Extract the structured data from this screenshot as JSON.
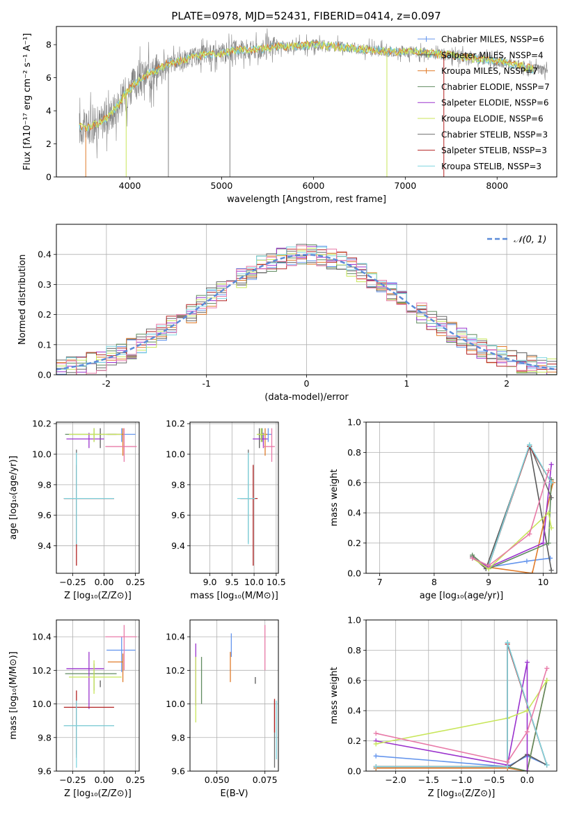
{
  "figure": {
    "title": "PLATE=0978, MJD=52431, FIBERID=0414, z=0.097"
  },
  "colors": {
    "chabrier_miles": "#6495ed",
    "salpeter_miles": "#5a5a5a",
    "kroupa_miles": "#e07b2a",
    "chabrier_elodie": "#5f8a5f",
    "salpeter_elodie": "#9a32cd",
    "kroupa_elodie": "#c8e65a",
    "chabrier_stelib": "#6a6a6a",
    "salpeter_stelib": "#b22222",
    "kroupa_stelib": "#7fd6e0",
    "elodie_pink": "#e87aa8",
    "data_grey": "#808080",
    "normal_curve": "#5b8bd8"
  },
  "chart_data": [
    {
      "id": "spectrum",
      "type": "line",
      "xlabel": "wavelength [Angstrom, rest frame]",
      "ylabel": "Flux [fλ10⁻¹⁷ erg cm⁻² s⁻¹ A⁻¹]",
      "xlim": [
        3200,
        8650
      ],
      "ylim": [
        0,
        9.1
      ],
      "xticks": [
        4000,
        5000,
        6000,
        7000,
        8000
      ],
      "yticks": [
        0,
        2,
        4,
        6,
        8
      ],
      "grid": false,
      "legend_position": "top-right",
      "legend": [
        "Chabrier MILES, NSSP=6",
        "Salpeter MILES, NSSP=4",
        "Kroupa MILES, NSSP=7",
        "Chabrier ELODIE, NSSP=7",
        "Salpeter ELODIE, NSSP=6",
        "Kroupa ELODIE, NSSP=6",
        "Chabrier STELIB, NSSP=3",
        "Salpeter STELIB, NSSP=3",
        "Kroupa STELIB, NSSP=3"
      ],
      "continuum": {
        "x": [
          3450,
          3550,
          3650,
          3750,
          3850,
          3950,
          4050,
          4200,
          4400,
          4600,
          4800,
          5000,
          5200,
          5400,
          5600,
          5800,
          6000,
          6200,
          6400,
          6600,
          6800,
          7000,
          7200,
          7400,
          7600,
          7800,
          8000,
          8200,
          8400
        ],
        "y": [
          3.0,
          3.0,
          3.2,
          3.6,
          4.2,
          5.0,
          5.6,
          6.2,
          6.8,
          7.1,
          7.4,
          7.5,
          7.7,
          7.7,
          7.9,
          7.9,
          8.0,
          7.9,
          7.8,
          7.7,
          7.6,
          7.6,
          7.5,
          7.4,
          7.3,
          7.1,
          7.0,
          6.8,
          6.5
        ]
      },
      "data_range": [
        3450,
        8550
      ]
    },
    {
      "id": "residuals",
      "type": "histogram",
      "xlabel": "(data-model)/error",
      "ylabel": "Normed distribution",
      "xlim": [
        -2.5,
        2.5
      ],
      "ylim": [
        0,
        0.5
      ],
      "xticks": [
        -2,
        -1,
        0,
        1,
        2
      ],
      "yticks": [
        0.0,
        0.1,
        0.2,
        0.3,
        0.4
      ],
      "grid": true,
      "legend_position": "top-right",
      "legend": [
        "𝒩(0, 1)"
      ],
      "bin_edges_start": -2.5,
      "bin_width": 0.1
    },
    {
      "id": "age_vs_Z",
      "type": "errorbar",
      "xlabel": "Z [log₁₀(Z/Z⊙)]",
      "ylabel": "age  [log₁₀(age/yr)]",
      "xlim": [
        -0.38,
        0.28
      ],
      "ylim": [
        9.22,
        10.21
      ],
      "xticks": [
        -0.25,
        0.0,
        0.25
      ],
      "xticklabels": [
        "−0.25",
        "0.00",
        "0.25"
      ],
      "yticks": [
        9.4,
        9.6,
        9.8,
        10.0,
        10.2
      ],
      "grid": true
    },
    {
      "id": "age_vs_mass",
      "type": "errorbar",
      "xlabel": "mass [log₁₀(M/M⊙)]",
      "ylabel": "",
      "xlim": [
        8.55,
        10.55
      ],
      "ylim": [
        9.22,
        10.21
      ],
      "xticks": [
        9.0,
        9.5,
        10.0,
        10.5
      ],
      "yticks": [
        9.4,
        9.6,
        9.8,
        10.0,
        10.2
      ],
      "grid": true
    },
    {
      "id": "weight_vs_age",
      "type": "line",
      "xlabel": "age  [log₁₀(age/yr)]",
      "ylabel": "mass weight",
      "xlim": [
        6.75,
        10.25
      ],
      "ylim": [
        0,
        1.0
      ],
      "xticks": [
        7,
        8,
        9,
        10
      ],
      "yticks": [
        0.0,
        0.2,
        0.4,
        0.6,
        0.8,
        1.0
      ],
      "grid": true
    },
    {
      "id": "mass_vs_Z",
      "type": "errorbar",
      "xlabel": "Z [log₁₀(Z/Z⊙)]",
      "ylabel": "mass [log₁₀(M/M⊙)]",
      "xlim": [
        -0.38,
        0.28
      ],
      "ylim": [
        9.6,
        10.5
      ],
      "xticks": [
        -0.25,
        0.0,
        0.25
      ],
      "xticklabels": [
        "−0.25",
        "0.00",
        "0.25"
      ],
      "yticks": [
        9.6,
        9.8,
        10.0,
        10.2,
        10.4
      ],
      "grid": true
    },
    {
      "id": "mass_vs_ebv",
      "type": "errorbar",
      "xlabel": "E(B-V)",
      "ylabel": "",
      "xlim": [
        0.036,
        0.082
      ],
      "ylim": [
        9.6,
        10.5
      ],
      "xticks": [
        0.05,
        0.075
      ],
      "xticklabels": [
        "0.050",
        "0.075"
      ],
      "yticks": [
        9.6,
        9.8,
        10.0,
        10.2,
        10.4
      ],
      "grid": true
    },
    {
      "id": "weight_vs_Z",
      "type": "line",
      "xlabel": "Z [log₁₀(Z/Z⊙)]",
      "ylabel": "mass weight",
      "xlim": [
        -2.45,
        0.45
      ],
      "ylim": [
        0,
        1.0
      ],
      "xticks": [
        -2.0,
        -1.5,
        -1.0,
        -0.5,
        0.0
      ],
      "xticklabels": [
        "−2.0",
        "−1.5",
        "−1.0",
        "−0.5",
        "0.0"
      ],
      "yticks": [
        0.0,
        0.2,
        0.4,
        0.6,
        0.8,
        1.0
      ],
      "grid": true
    }
  ],
  "models": [
    {
      "key": "chabrier_miles",
      "age": 10.13,
      "age_err": [
        0.05,
        0.0
      ],
      "Z": 0.14,
      "Z_err": [
        0.12,
        0.11
      ],
      "mass": 10.32,
      "mass_err": [
        0.13,
        0.08
      ],
      "ebv": 0.0575,
      "ebv_mass_err": [
        0.04,
        0.1
      ],
      "w_age": [
        [
          8.7,
          0.1
        ],
        [
          9.0,
          0.04
        ],
        [
          9.7,
          0.08
        ],
        [
          10.13,
          0.1
        ]
      ],
      "w_Z": [
        [
          -2.3,
          0.1
        ],
        [
          -0.3,
          0.03
        ],
        [
          0.0,
          0.1
        ],
        [
          0.3,
          0.04
        ]
      ]
    },
    {
      "key": "salpeter_miles",
      "age": 10.13,
      "age_err": [
        0.09,
        0.0
      ],
      "Z": -0.03,
      "Z_err": [
        0.0,
        0.0
      ],
      "mass": 10.12,
      "mass_err": [
        0.02,
        0.02
      ],
      "ebv": 0.07,
      "ebv_mass_err": [
        0.0,
        0.0
      ],
      "w_age": [
        [
          8.7,
          0.11
        ],
        [
          8.95,
          0.03
        ],
        [
          9.75,
          0.84
        ],
        [
          10.15,
          0.02
        ]
      ],
      "w_Z": [
        [
          -2.3,
          0.02
        ],
        [
          -0.3,
          0.02
        ],
        [
          0.0,
          0.11
        ],
        [
          0.3,
          0.04
        ]
      ]
    },
    {
      "key": "kroupa_miles",
      "age": 10.13,
      "age_err": [
        0.14,
        0.0
      ],
      "Z": 0.15,
      "Z_err": [
        0.12,
        0.0
      ],
      "mass": 10.25,
      "mass_err": [
        0.12,
        0.05
      ],
      "ebv": 0.057,
      "ebv_mass_err": [
        0.12,
        0.06
      ],
      "w_age": [
        [
          8.7,
          0.1
        ],
        [
          9.0,
          0.04
        ],
        [
          9.8,
          0.0
        ],
        [
          10.18,
          0.6
        ]
      ],
      "w_Z": [
        [
          -2.3,
          0.02
        ],
        [
          -0.3,
          0.02
        ],
        [
          0.0,
          0.0
        ],
        [
          0.3,
          0.6
        ]
      ]
    },
    {
      "key": "chabrier_elodie",
      "age": 10.13,
      "age_err": [
        0.05,
        0.0
      ],
      "Z": -0.08,
      "Z_err": [
        0.23,
        0.18
      ],
      "mass": 10.18,
      "mass_err": [
        0.1,
        0.06
      ],
      "ebv": 0.042,
      "ebv_mass_err": [
        0.18,
        0.1
      ],
      "w_age": [
        [
          8.7,
          0.12
        ],
        [
          9.0,
          0.03
        ],
        [
          10.1,
          0.2
        ],
        [
          10.15,
          0.62
        ]
      ],
      "w_Z": [
        [
          -2.3,
          0.03
        ],
        [
          -0.3,
          0.03
        ],
        [
          0.0,
          0.0
        ],
        [
          0.3,
          0.6
        ]
      ]
    },
    {
      "key": "salpeter_elodie",
      "age": 10.1,
      "age_err": [
        0.06,
        0.0
      ],
      "Z": -0.12,
      "Z_err": [
        0.18,
        0.12
      ],
      "mass": 10.21,
      "mass_err": [
        0.24,
        0.1
      ],
      "ebv": 0.039,
      "ebv_mass_err": [
        0.22,
        0.15
      ],
      "w_age": [
        [
          8.7,
          0.1
        ],
        [
          9.0,
          0.04
        ],
        [
          10.0,
          0.2
        ],
        [
          10.15,
          0.72
        ]
      ],
      "w_Z": [
        [
          -2.3,
          0.2
        ],
        [
          -0.3,
          0.04
        ],
        [
          0.0,
          0.72
        ],
        [
          0.0,
          0.0
        ]
      ]
    },
    {
      "key": "kroupa_elodie",
      "age": 10.13,
      "age_err": [
        0.05,
        0.0
      ],
      "Z": -0.08,
      "Z_err": [
        0.2,
        0.22
      ],
      "mass": 10.16,
      "mass_err": [
        0.1,
        0.1
      ],
      "ebv": 0.039,
      "ebv_mass_err": [
        0.27,
        0.12
      ],
      "w_age": [
        [
          8.7,
          0.1
        ],
        [
          9.0,
          0.03
        ],
        [
          10.1,
          0.4
        ],
        [
          10.15,
          0.3
        ]
      ],
      "w_Z": [
        [
          -2.3,
          0.18
        ],
        [
          -0.3,
          0.35
        ],
        [
          0.0,
          0.4
        ],
        [
          0.3,
          0.6
        ]
      ]
    },
    {
      "key": "chabrier_stelib",
      "age": 9.71,
      "age_err": [
        0.29,
        0.32
      ],
      "Z": -0.22,
      "Z_err": [
        0.1,
        0.3
      ],
      "mass": 9.87,
      "mass_err": [
        0.17,
        0.15
      ],
      "ebv": 0.08,
      "ebv_mass_err": [
        0.25,
        0.15
      ],
      "w_age": [
        [
          8.7,
          0.1
        ],
        [
          9.0,
          0.05
        ],
        [
          9.75,
          0.85
        ],
        [
          10.15,
          0.5
        ]
      ],
      "w_Z": [
        [
          -2.3,
          0.03
        ],
        [
          -0.3,
          0.03
        ],
        [
          -0.3,
          0.85
        ],
        [
          0.3,
          0.04
        ]
      ]
    },
    {
      "key": "salpeter_stelib",
      "age": 9.71,
      "age_err": [
        0.44,
        0.22
      ],
      "Z": -0.22,
      "Z_err": [
        0.1,
        0.3
      ],
      "mass": 9.98,
      "mass_err": [
        0.3,
        0.1
      ],
      "ebv": 0.08,
      "ebv_mass_err": [
        0.15,
        0.05
      ],
      "w_age": [
        [
          8.7,
          0.1
        ],
        [
          9.0,
          0.05
        ],
        [
          9.75,
          0.84
        ],
        [
          10.15,
          0.6
        ]
      ],
      "w_Z": [
        [
          -2.3,
          0.03
        ],
        [
          -0.3,
          0.03
        ],
        [
          -0.3,
          0.84
        ],
        [
          0.3,
          0.04
        ]
      ]
    },
    {
      "key": "kroupa_stelib",
      "age": 9.71,
      "age_err": [
        0.3,
        0.3
      ],
      "Z": -0.22,
      "Z_err": [
        0.1,
        0.3
      ],
      "mass": 9.87,
      "mass_err": [
        0.25,
        0.15
      ],
      "ebv": 0.081,
      "ebv_mass_err": [
        0.2,
        0.15
      ],
      "w_age": [
        [
          8.7,
          0.1
        ],
        [
          9.0,
          0.05
        ],
        [
          9.75,
          0.85
        ],
        [
          10.15,
          0.6
        ]
      ],
      "w_Z": [
        [
          -2.3,
          0.03
        ],
        [
          -0.3,
          0.03
        ],
        [
          -0.3,
          0.85
        ],
        [
          0.3,
          0.04
        ]
      ]
    },
    {
      "key": "elodie_pink",
      "age": 10.05,
      "age_err": [
        0.1,
        0.12
      ],
      "Z": 0.16,
      "Z_err": [
        0.15,
        0.1
      ],
      "mass": 10.4,
      "mass_err": [
        0.2,
        0.07
      ],
      "ebv": 0.075,
      "ebv_mass_err": [
        0.2,
        0.07
      ],
      "w_age": [
        [
          8.7,
          0.1
        ],
        [
          9.0,
          0.05
        ],
        [
          9.75,
          0.26
        ],
        [
          10.1,
          0.68
        ]
      ],
      "w_Z": [
        [
          -2.3,
          0.25
        ],
        [
          -0.3,
          0.06
        ],
        [
          0.0,
          0.26
        ],
        [
          0.3,
          0.68
        ]
      ]
    }
  ]
}
